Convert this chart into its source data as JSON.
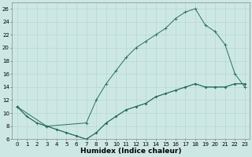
{
  "xlabel": "Humidex (Indice chaleur)",
  "bg_color": "#cde8e4",
  "line_color": "#2a6e62",
  "xlim": [
    -0.5,
    23.5
  ],
  "ylim": [
    6,
    27
  ],
  "xticks": [
    0,
    1,
    2,
    3,
    4,
    5,
    6,
    7,
    8,
    9,
    10,
    11,
    12,
    13,
    14,
    15,
    16,
    17,
    18,
    19,
    20,
    21,
    22,
    23
  ],
  "yticks": [
    6,
    8,
    10,
    12,
    14,
    16,
    18,
    20,
    22,
    24,
    26
  ],
  "line1_x": [
    0,
    1,
    2,
    3,
    4,
    5,
    6,
    7,
    8,
    9,
    10,
    11,
    12,
    13,
    14,
    15,
    16,
    17,
    18,
    19,
    20,
    21,
    22,
    23
  ],
  "line1_y": [
    11,
    9.5,
    8.5,
    8,
    7.5,
    7,
    6.5,
    6.0,
    7.0,
    8.5,
    9.5,
    10.5,
    11.0,
    11.5,
    12.5,
    13.0,
    13.5,
    14.0,
    14.5,
    14.0,
    14.0,
    14.0,
    14.5,
    14.5
  ],
  "line2_x": [
    0,
    1,
    2,
    3,
    7,
    8,
    9,
    10,
    11,
    12,
    13,
    14,
    15,
    16,
    17,
    18,
    19,
    20,
    21,
    22,
    23
  ],
  "line2_y": [
    11,
    9.5,
    8.5,
    8,
    8.5,
    12.0,
    14.5,
    16.5,
    18.5,
    20.0,
    21.0,
    22.0,
    23.0,
    24.5,
    25.5,
    26.0,
    23.5,
    22.5,
    20.5,
    16.0,
    14.0
  ],
  "line3_x": [
    0,
    3,
    4,
    5,
    6,
    7,
    8,
    9,
    10,
    11,
    12,
    13,
    14,
    15,
    16,
    17,
    18,
    19,
    20,
    21,
    22,
    23
  ],
  "line3_y": [
    11,
    8,
    7.5,
    7,
    6.5,
    6.0,
    7.0,
    8.5,
    9.5,
    10.5,
    11.0,
    11.5,
    12.5,
    13.0,
    13.5,
    14.0,
    14.5,
    14.0,
    14.0,
    14.0,
    14.5,
    14.5
  ],
  "grid_color": "#afd4ce",
  "tick_fontsize": 5,
  "xlabel_fontsize": 6.5,
  "linewidth": 0.7,
  "markersize": 2.0
}
